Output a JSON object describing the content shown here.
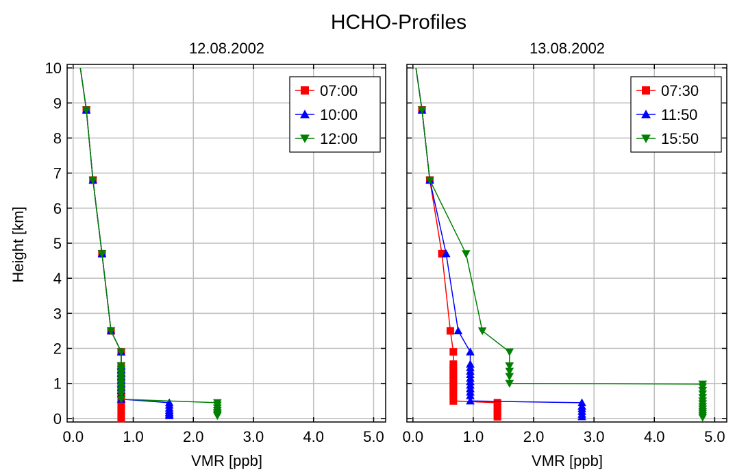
{
  "figure": {
    "title": "HCHO-Profiles",
    "ylabel": "Height [km]"
  },
  "chart_data": [
    {
      "type": "line",
      "title": "12.08.2002",
      "xlabel": "VMR [ppb]",
      "ylabel": "Height [km]",
      "xlim": [
        -0.1,
        5.2
      ],
      "ylim": [
        -0.1,
        10.1
      ],
      "xticks": [
        "0.0",
        "1.0",
        "2.0",
        "3.0",
        "4.0",
        "5.0"
      ],
      "yticks": [
        "0",
        "1",
        "2",
        "3",
        "4",
        "5",
        "6",
        "7",
        "8",
        "9",
        "10"
      ],
      "grid": true,
      "legend": "top-right",
      "series": [
        {
          "name": "07:00",
          "color": "#ff0000",
          "marker": "square",
          "x": [
            0.12,
            0.22,
            0.33,
            0.48,
            0.63,
            0.8,
            0.8,
            0.8,
            0.8,
            0.8,
            0.8,
            0.8,
            0.8,
            0.8,
            0.8,
            0.8,
            0.8,
            0.8,
            0.8,
            0.8,
            0.8,
            0.8,
            0.8
          ],
          "y": [
            10.0,
            8.8,
            6.8,
            4.7,
            2.5,
            1.9,
            1.5,
            1.4,
            1.3,
            1.2,
            1.1,
            1.0,
            0.9,
            0.8,
            0.7,
            0.6,
            0.5,
            0.4,
            0.3,
            0.2,
            0.1,
            0.05,
            0.0
          ]
        },
        {
          "name": "10:00",
          "color": "#0000ff",
          "marker": "triangle-up",
          "x": [
            0.12,
            0.22,
            0.33,
            0.48,
            0.63,
            0.8,
            0.8,
            0.8,
            0.8,
            0.8,
            0.8,
            0.8,
            0.8,
            0.8,
            0.8,
            0.8,
            1.6,
            1.6,
            1.6,
            1.6,
            1.6,
            1.6,
            1.6
          ],
          "y": [
            10.0,
            8.8,
            6.8,
            4.7,
            2.5,
            1.9,
            1.5,
            1.4,
            1.3,
            1.2,
            1.1,
            1.0,
            0.9,
            0.8,
            0.7,
            0.55,
            0.45,
            0.38,
            0.3,
            0.23,
            0.17,
            0.12,
            0.08
          ]
        },
        {
          "name": "12:00",
          "color": "#008000",
          "marker": "triangle-down",
          "x": [
            0.12,
            0.22,
            0.33,
            0.48,
            0.63,
            0.8,
            0.8,
            0.8,
            0.8,
            0.8,
            0.8,
            0.8,
            0.8,
            0.8,
            0.8,
            0.8,
            2.4,
            2.4,
            2.4,
            2.4,
            2.4,
            2.4,
            2.4
          ],
          "y": [
            10.0,
            8.8,
            6.8,
            4.7,
            2.5,
            1.9,
            1.5,
            1.4,
            1.3,
            1.2,
            1.1,
            1.0,
            0.9,
            0.8,
            0.7,
            0.55,
            0.45,
            0.38,
            0.3,
            0.23,
            0.17,
            0.12,
            0.08
          ]
        }
      ]
    },
    {
      "type": "line",
      "title": "13.08.2002",
      "xlabel": "VMR [ppb]",
      "xlim": [
        -0.1,
        5.2
      ],
      "ylim": [
        -0.1,
        10.1
      ],
      "xticks": [
        "0.0",
        "1.0",
        "2.0",
        "3.0",
        "4.0",
        "5.0"
      ],
      "grid": true,
      "legend": "top-right",
      "series": [
        {
          "name": "07:30",
          "color": "#ff0000",
          "marker": "square",
          "x": [
            0.05,
            0.15,
            0.28,
            0.48,
            0.62,
            0.67,
            0.67,
            0.67,
            0.67,
            0.67,
            0.67,
            0.67,
            0.67,
            0.67,
            0.67,
            0.67,
            0.67,
            1.4,
            1.4,
            1.4,
            1.4,
            1.4,
            1.4
          ],
          "y": [
            10.0,
            8.8,
            6.8,
            4.7,
            2.5,
            1.9,
            1.55,
            1.45,
            1.35,
            1.25,
            1.15,
            1.05,
            0.95,
            0.85,
            0.75,
            0.65,
            0.5,
            0.45,
            0.4,
            0.3,
            0.2,
            0.12,
            0.05
          ]
        },
        {
          "name": "11:50",
          "color": "#0000ff",
          "marker": "triangle-up",
          "x": [
            0.05,
            0.15,
            0.28,
            0.55,
            0.75,
            0.95,
            0.95,
            0.95,
            0.95,
            0.95,
            0.95,
            0.95,
            0.95,
            0.95,
            0.95,
            0.95,
            0.95,
            2.8,
            2.8,
            2.8,
            2.8,
            2.8,
            2.8
          ],
          "y": [
            10.0,
            8.8,
            6.8,
            4.7,
            2.5,
            1.9,
            1.55,
            1.45,
            1.35,
            1.25,
            1.15,
            1.05,
            0.95,
            0.85,
            0.75,
            0.65,
            0.5,
            0.45,
            0.35,
            0.28,
            0.2,
            0.12,
            0.05
          ]
        },
        {
          "name": "15:50",
          "color": "#008000",
          "marker": "triangle-down",
          "x": [
            0.05,
            0.15,
            0.28,
            0.88,
            1.15,
            1.6,
            1.6,
            1.6,
            1.6,
            1.6,
            4.8,
            4.8,
            4.8,
            4.8,
            4.8,
            4.8,
            4.8,
            4.8,
            4.8,
            4.8,
            4.8,
            4.8,
            4.8
          ],
          "y": [
            10.0,
            8.8,
            6.8,
            4.7,
            2.5,
            1.9,
            1.5,
            1.35,
            1.2,
            1.0,
            0.98,
            0.9,
            0.8,
            0.7,
            0.6,
            0.5,
            0.42,
            0.34,
            0.27,
            0.2,
            0.14,
            0.08,
            0.03
          ]
        }
      ]
    }
  ]
}
